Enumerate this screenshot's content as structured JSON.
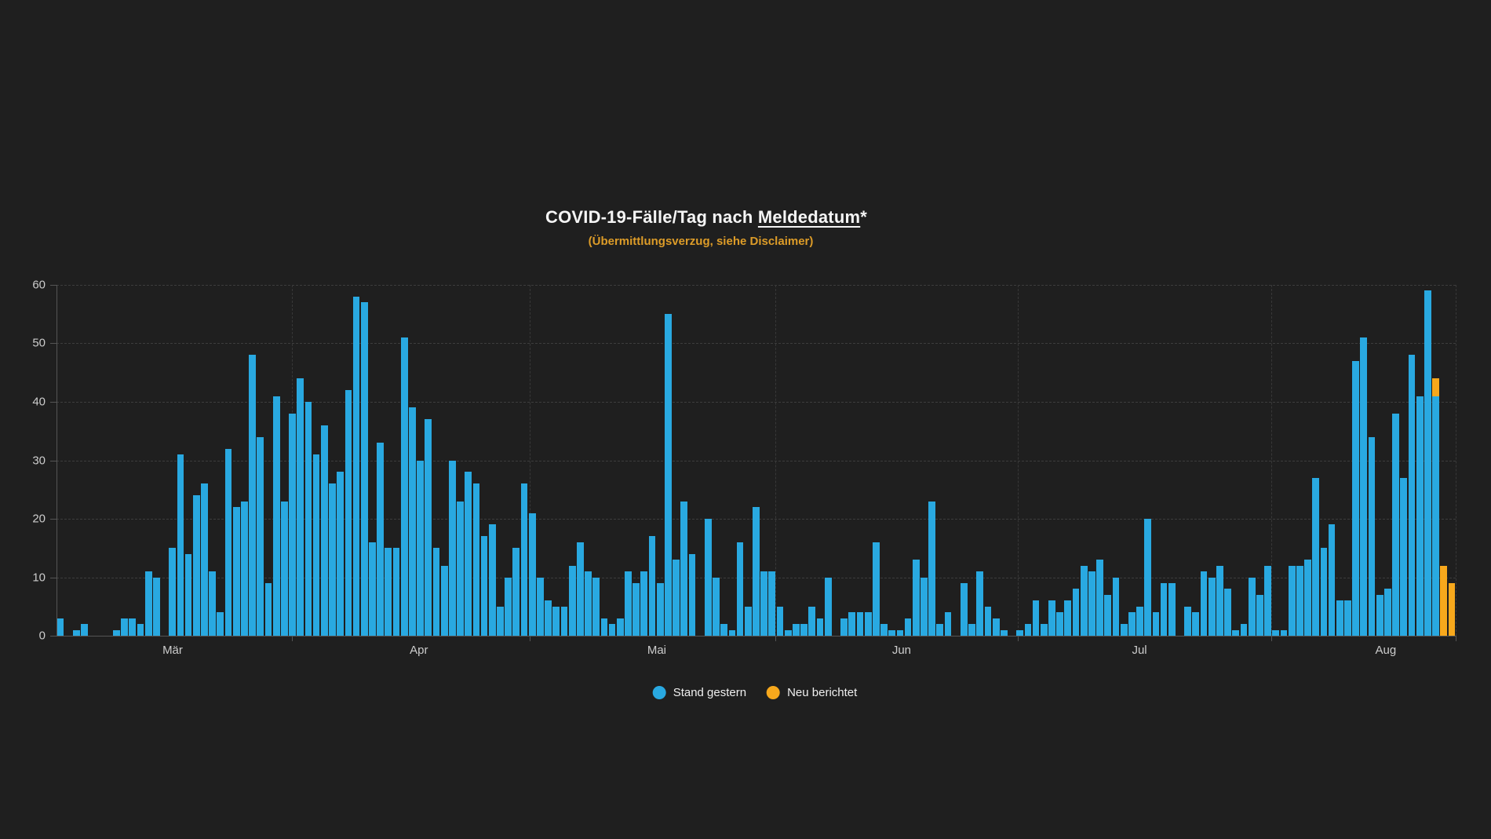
{
  "page": {
    "background": "#1f1f1f"
  },
  "header": {
    "title_prefix": "COVID-19-Fälle/Tag nach ",
    "title_underlined": "Meldedatum",
    "title_suffix": "*",
    "subtitle": "(Übermittlungsverzug, siehe Disclaimer)"
  },
  "legend": {
    "position": "bottom center",
    "items": [
      {
        "label": "Stand gestern",
        "color": "#29a9e1"
      },
      {
        "label": "Neu berichtet",
        "color": "#f7a81c"
      }
    ]
  },
  "colors": {
    "background": "#1f1f1f",
    "bar_blue": "#29a9e1",
    "bar_orange": "#f7a81c",
    "subtitle_orange": "#dd9c28",
    "title_text": "#f5f5f5",
    "axis_text": "#cccccc",
    "gridline": "#3d3d3d",
    "axis_line": "#555555"
  },
  "chart_data": {
    "type": "bar",
    "stacked": true,
    "title": "COVID-19-Fälle/Tag nach Meldedatum*",
    "subtitle": "(Übermittlungsverzug, siehe Disclaimer)",
    "xlabel": "",
    "ylabel": "",
    "ylim": [
      0,
      60
    ],
    "y_ticks": [
      0,
      10,
      20,
      30,
      40,
      50,
      60
    ],
    "grid": "horizontal dashed gridlines at each y tick; vertical dashed gridlines at month boundaries",
    "legend_position": "bottom center",
    "x_unit": "day (daily bars, ~Mar–early Aug)",
    "x_month_labels": [
      {
        "label": "Mär",
        "pos_pct": 8.3
      },
      {
        "label": "Apr",
        "pos_pct": 25.9
      },
      {
        "label": "Mai",
        "pos_pct": 42.9
      },
      {
        "label": "Jun",
        "pos_pct": 60.4
      },
      {
        "label": "Jul",
        "pos_pct": 77.4
      },
      {
        "label": "Aug",
        "pos_pct": 95.0
      }
    ],
    "x_month_boundaries_pct": [
      16.8,
      33.8,
      51.4,
      68.7,
      86.8,
      100
    ],
    "series": [
      {
        "name": "Stand gestern",
        "color": "#29a9e1",
        "values": [
          3,
          0,
          1,
          2,
          0,
          0,
          0,
          1,
          3,
          3,
          2,
          11,
          10,
          0,
          15,
          31,
          14,
          24,
          26,
          11,
          4,
          32,
          22,
          23,
          48,
          34,
          9,
          41,
          23,
          38,
          44,
          40,
          31,
          36,
          26,
          28,
          42,
          58,
          57,
          16,
          33,
          15,
          15,
          51,
          39,
          30,
          37,
          15,
          12,
          30,
          23,
          28,
          26,
          17,
          19,
          5,
          10,
          15,
          26,
          21,
          10,
          6,
          5,
          5,
          12,
          16,
          11,
          10,
          3,
          2,
          3,
          11,
          9,
          11,
          17,
          9,
          55,
          13,
          23,
          14,
          0,
          20,
          10,
          2,
          1,
          16,
          5,
          22,
          11,
          11,
          5,
          1,
          2,
          2,
          5,
          3,
          10,
          0,
          3,
          4,
          4,
          4,
          16,
          2,
          1,
          1,
          3,
          13,
          10,
          23,
          2,
          4,
          0,
          9,
          2,
          11,
          5,
          3,
          1,
          0,
          1,
          2,
          6,
          2,
          6,
          4,
          6,
          8,
          12,
          11,
          13,
          7,
          10,
          2,
          4,
          5,
          20,
          4,
          9,
          9,
          0,
          5,
          4,
          11,
          10,
          12,
          8,
          1,
          2,
          10,
          7,
          12,
          1,
          1,
          12,
          12,
          13,
          27,
          15,
          19,
          6,
          6,
          47,
          51,
          34,
          7,
          8,
          38,
          27,
          48,
          41,
          59,
          41,
          0,
          0
        ]
      },
      {
        "name": "Neu berichtet",
        "color": "#f7a81c",
        "values": [
          0,
          0,
          0,
          0,
          0,
          0,
          0,
          0,
          0,
          0,
          0,
          0,
          0,
          0,
          0,
          0,
          0,
          0,
          0,
          0,
          0,
          0,
          0,
          0,
          0,
          0,
          0,
          0,
          0,
          0,
          0,
          0,
          0,
          0,
          0,
          0,
          0,
          0,
          0,
          0,
          0,
          0,
          0,
          0,
          0,
          0,
          0,
          0,
          0,
          0,
          0,
          0,
          0,
          0,
          0,
          0,
          0,
          0,
          0,
          0,
          0,
          0,
          0,
          0,
          0,
          0,
          0,
          0,
          0,
          0,
          0,
          0,
          0,
          0,
          0,
          0,
          0,
          0,
          0,
          0,
          0,
          0,
          0,
          0,
          0,
          0,
          0,
          0,
          0,
          0,
          0,
          0,
          0,
          0,
          0,
          0,
          0,
          0,
          0,
          0,
          0,
          0,
          0,
          0,
          0,
          0,
          0,
          0,
          0,
          0,
          0,
          0,
          0,
          0,
          0,
          0,
          0,
          0,
          0,
          0,
          0,
          0,
          0,
          0,
          0,
          0,
          0,
          0,
          0,
          0,
          0,
          0,
          0,
          0,
          0,
          0,
          0,
          0,
          0,
          0,
          0,
          0,
          0,
          0,
          0,
          0,
          0,
          0,
          0,
          0,
          0,
          0,
          0,
          0,
          0,
          0,
          0,
          0,
          0,
          0,
          0,
          0,
          0,
          0,
          0,
          0,
          0,
          0,
          0,
          0,
          0,
          0,
          3,
          12,
          9
        ]
      }
    ]
  }
}
